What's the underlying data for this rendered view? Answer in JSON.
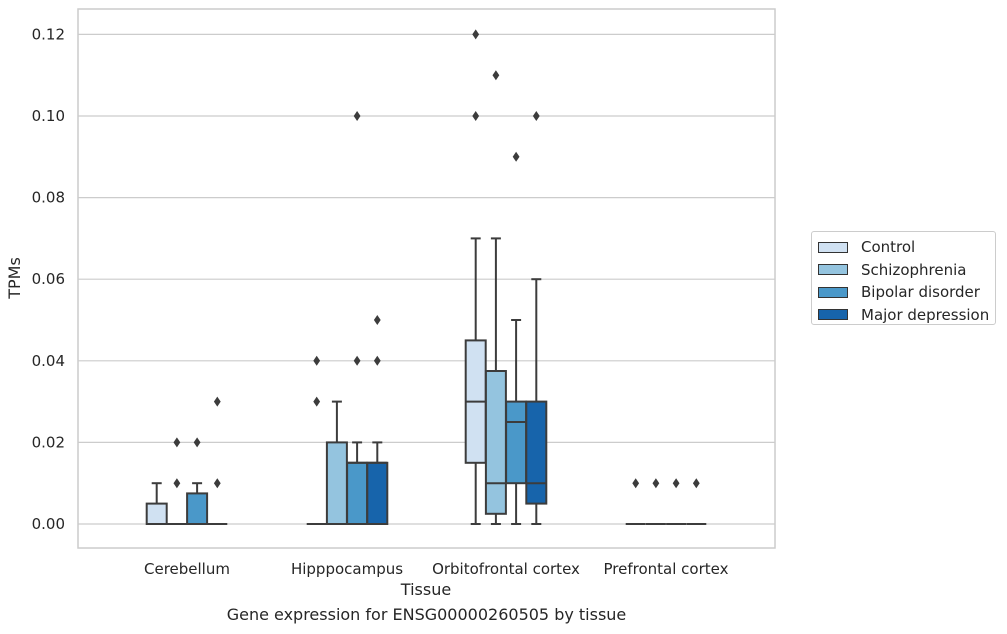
{
  "caption": "Gene expression for ENSG00000260505 by tissue",
  "chart_data": {
    "type": "boxplot",
    "xlabel": "Tissue",
    "ylabel": "TPMs",
    "ylim": [
      -0.006,
      0.126
    ],
    "yticks": [
      "0.00",
      "0.02",
      "0.04",
      "0.06",
      "0.08",
      "0.10",
      "0.12"
    ],
    "grid": true,
    "legend_position": "right",
    "categories": [
      "Cerebellum",
      "Hipppocampus",
      "Orbitofrontal cortex",
      "Prefrontal cortex"
    ],
    "series": [
      {
        "name": "Control",
        "color": "#d0e1f2",
        "boxes": [
          {
            "q1": 0.0,
            "median": 0.0,
            "q3": 0.005,
            "whisker_low": 0.0,
            "whisker_high": 0.01,
            "outliers": []
          },
          {
            "q1": 0.0,
            "median": 0.0,
            "q3": 0.0,
            "whisker_low": 0.0,
            "whisker_high": 0.0,
            "outliers": [
              0.03,
              0.04
            ]
          },
          {
            "q1": 0.015,
            "median": 0.03,
            "q3": 0.045,
            "whisker_low": 0.0,
            "whisker_high": 0.07,
            "outliers": [
              0.1,
              0.12
            ]
          },
          {
            "q1": 0.0,
            "median": 0.0,
            "q3": 0.0,
            "whisker_low": 0.0,
            "whisker_high": 0.0,
            "outliers": [
              0.01
            ]
          }
        ]
      },
      {
        "name": "Schizophrenia",
        "color": "#94c4df",
        "boxes": [
          {
            "q1": 0.0,
            "median": 0.0,
            "q3": 0.0,
            "whisker_low": 0.0,
            "whisker_high": 0.0,
            "outliers": [
              0.01,
              0.02
            ]
          },
          {
            "q1": 0.0,
            "median": 0.0,
            "q3": 0.02,
            "whisker_low": 0.0,
            "whisker_high": 0.03,
            "outliers": []
          },
          {
            "q1": 0.0025,
            "median": 0.01,
            "q3": 0.0375,
            "whisker_low": 0.0,
            "whisker_high": 0.07,
            "outliers": [
              0.11
            ]
          },
          {
            "q1": 0.0,
            "median": 0.0,
            "q3": 0.0,
            "whisker_low": 0.0,
            "whisker_high": 0.0,
            "outliers": [
              0.01
            ]
          }
        ]
      },
      {
        "name": "Bipolar disorder",
        "color": "#4a98c9",
        "boxes": [
          {
            "q1": 0.0,
            "median": 0.0,
            "q3": 0.0075,
            "whisker_low": 0.0,
            "whisker_high": 0.01,
            "outliers": [
              0.02
            ]
          },
          {
            "q1": 0.0,
            "median": 0.015,
            "q3": 0.015,
            "whisker_low": 0.0,
            "whisker_high": 0.02,
            "outliers": [
              0.04,
              0.1
            ]
          },
          {
            "q1": 0.01,
            "median": 0.025,
            "q3": 0.03,
            "whisker_low": 0.0,
            "whisker_high": 0.05,
            "outliers": [
              0.09
            ]
          },
          {
            "q1": 0.0,
            "median": 0.0,
            "q3": 0.0,
            "whisker_low": 0.0,
            "whisker_high": 0.0,
            "outliers": [
              0.01
            ]
          }
        ]
      },
      {
        "name": "Major depression",
        "color": "#1764ab",
        "boxes": [
          {
            "q1": 0.0,
            "median": 0.0,
            "q3": 0.0,
            "whisker_low": 0.0,
            "whisker_high": 0.0,
            "outliers": [
              0.01,
              0.03
            ]
          },
          {
            "q1": 0.0,
            "median": 0.015,
            "q3": 0.015,
            "whisker_low": 0.0,
            "whisker_high": 0.02,
            "outliers": [
              0.04,
              0.05
            ]
          },
          {
            "q1": 0.005,
            "median": 0.01,
            "q3": 0.03,
            "whisker_low": 0.0,
            "whisker_high": 0.06,
            "outliers": [
              0.1
            ]
          },
          {
            "q1": 0.0,
            "median": 0.0,
            "q3": 0.0,
            "whisker_low": 0.0,
            "whisker_high": 0.0,
            "outliers": [
              0.01
            ]
          }
        ]
      }
    ]
  }
}
